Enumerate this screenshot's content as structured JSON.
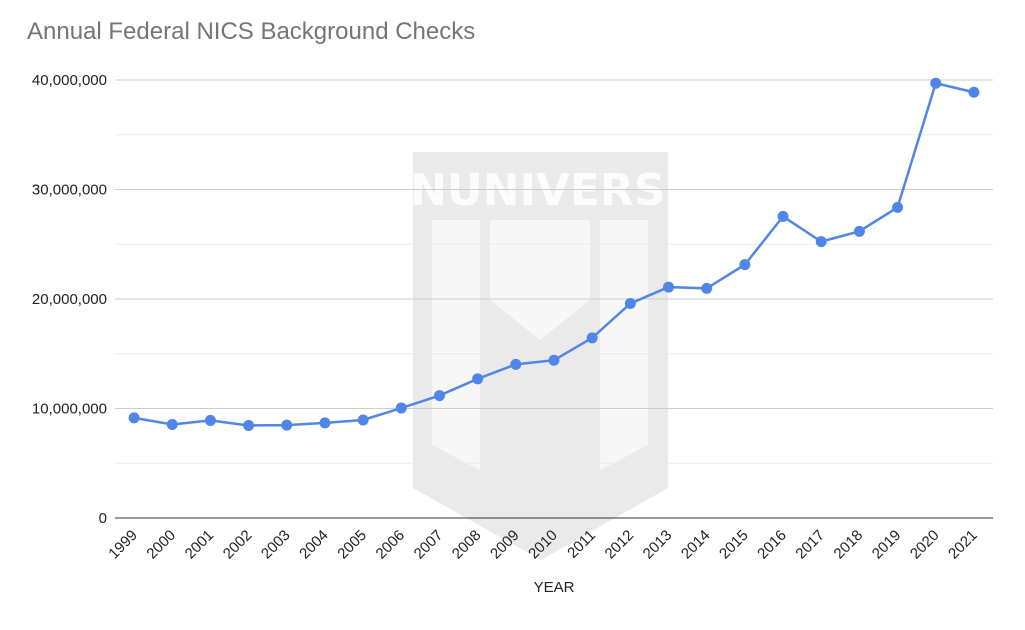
{
  "watermark": {
    "text": "GUNUNIVERSITY"
  },
  "chart_data": {
    "type": "line",
    "title": "Annual Federal NICS Background Checks",
    "xlabel": "YEAR",
    "ylabel": "",
    "ylim": [
      0,
      40000000
    ],
    "yticks": [
      {
        "value": 0,
        "label": "0"
      },
      {
        "value": 10000000,
        "label": "10,000,000"
      },
      {
        "value": 20000000,
        "label": "20,000,000"
      },
      {
        "value": 30000000,
        "label": "30,000,000"
      },
      {
        "value": 40000000,
        "label": "40,000,000"
      }
    ],
    "grid": true,
    "legend": "none",
    "color": "#4f86e8",
    "categories": [
      "1999",
      "2000",
      "2001",
      "2002",
      "2003",
      "2004",
      "2005",
      "2006",
      "2007",
      "2008",
      "2009",
      "2010",
      "2011",
      "2012",
      "2013",
      "2014",
      "2015",
      "2016",
      "2017",
      "2018",
      "2019",
      "2020",
      "2021"
    ],
    "series": [
      {
        "values": [
          9140000,
          8540000,
          8910000,
          8450000,
          8480000,
          8690000,
          8950000,
          10040000,
          11180000,
          12710000,
          14030000,
          14410000,
          16450000,
          19590000,
          21090000,
          20970000,
          23140000,
          27540000,
          25240000,
          26180000,
          28370000,
          39700000,
          38880000
        ]
      }
    ]
  }
}
